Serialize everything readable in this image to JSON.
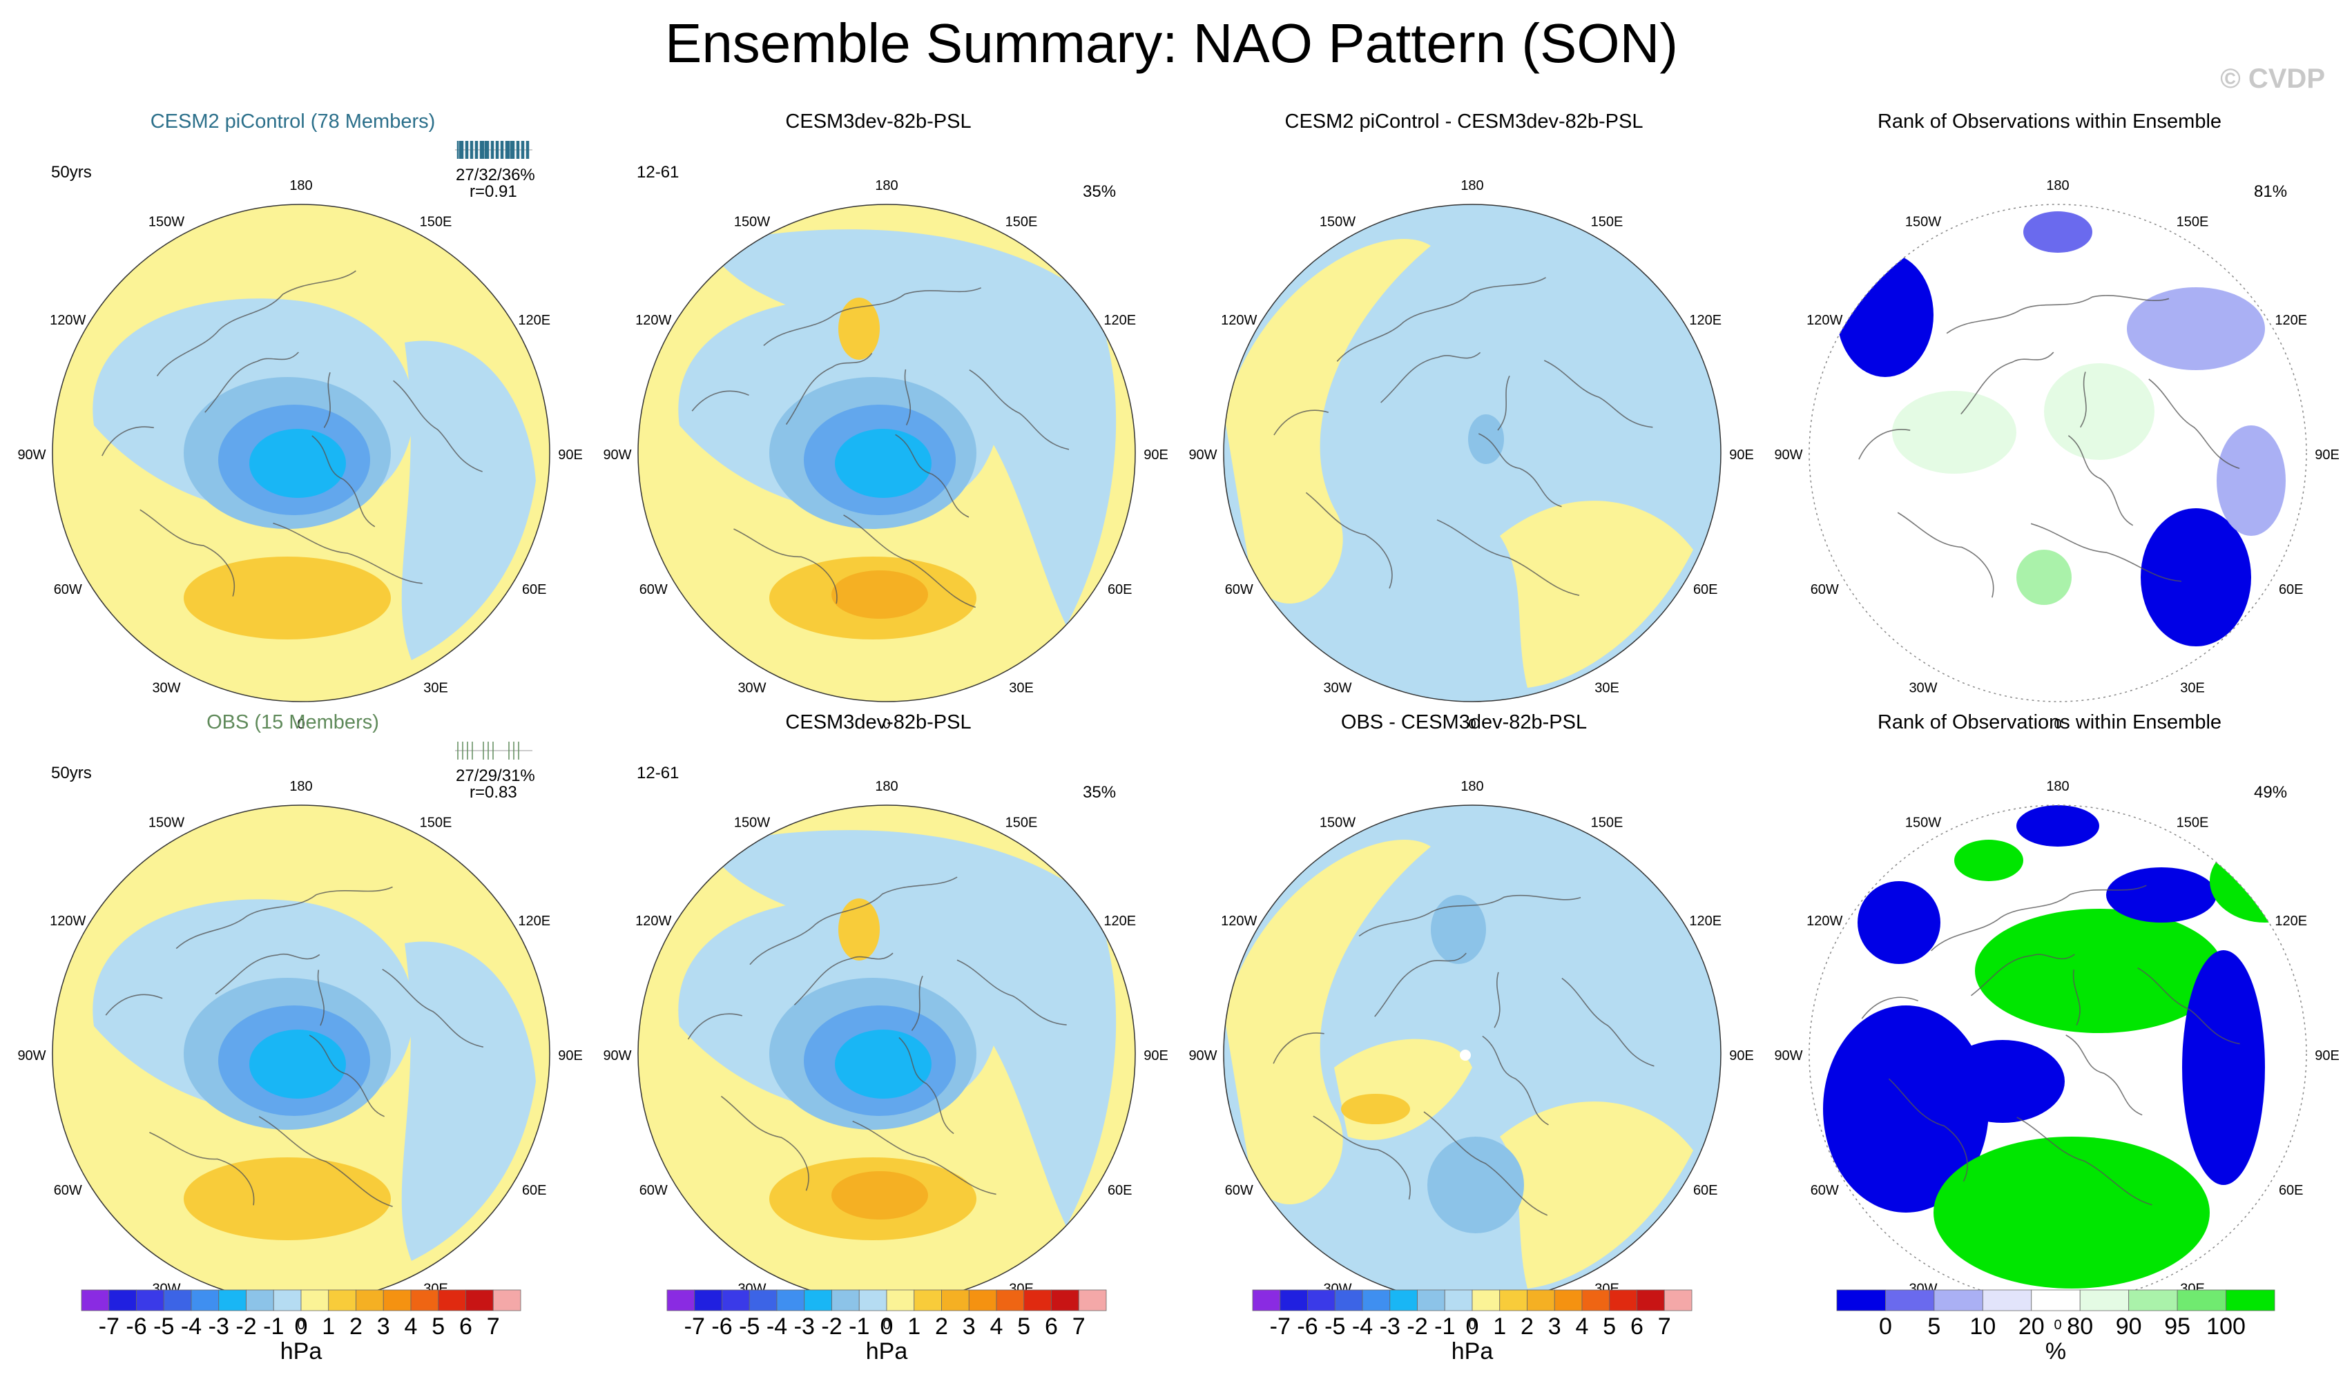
{
  "header": {
    "title": "Ensemble Summary: NAO Pattern (SON)",
    "watermark": "© CVDP"
  },
  "rows": [
    {
      "panels": [
        {
          "title": "CESM2 piControl (78 Members)",
          "title_color": "#2b6f8a",
          "period": "50yrs",
          "stats": "27/32/36%",
          "corr": "r=0.91",
          "bar_color": "#2b6f8a",
          "kind": "pattern",
          "variant": 0
        },
        {
          "title": "CESM3dev-82b-PSL",
          "title_color": "#000000",
          "period": "12-61",
          "percent": "35%",
          "kind": "pattern",
          "variant": 1
        },
        {
          "title": "CESM2 piControl - CESM3dev-82b-PSL",
          "title_color": "#000000",
          "kind": "diff",
          "variant": 2
        },
        {
          "title": "Rank of Observations within Ensemble",
          "title_color": "#000000",
          "percent": "81%",
          "kind": "rank",
          "variant": 3
        }
      ]
    },
    {
      "panels": [
        {
          "title": "OBS (15 Members)",
          "title_color": "#5f8a5a",
          "period": "50yrs",
          "stats": "27/29/31%",
          "corr": "r=0.83",
          "bar_color": "#5f8a5a",
          "kind": "pattern",
          "variant": 4
        },
        {
          "title": "CESM3dev-82b-PSL",
          "title_color": "#000000",
          "period": "12-61",
          "percent": "35%",
          "kind": "pattern",
          "variant": 5
        },
        {
          "title": "OBS - CESM3dev-82b-PSL",
          "title_color": "#000000",
          "kind": "diff",
          "variant": 6
        },
        {
          "title": "Rank of Observations within Ensemble",
          "title_color": "#000000",
          "percent": "49%",
          "kind": "rank",
          "variant": 7
        }
      ]
    }
  ],
  "longitude_labels": [
    "180",
    "150E",
    "120E",
    "90E",
    "60E",
    "30E",
    "0",
    "30W",
    "60W",
    "90W",
    "120W",
    "150W"
  ],
  "colorbar_hpa": {
    "labels": [
      "-7",
      "-6",
      "-5",
      "-4",
      "-3",
      "-2",
      "-1",
      "0",
      "1",
      "2",
      "3",
      "4",
      "5",
      "6",
      "7"
    ],
    "unit": "hPa",
    "colors": [
      "#8a2be2",
      "#2020e0",
      "#3a3ae8",
      "#3c64e6",
      "#3f8ff0",
      "#19b6f5",
      "#8cc3e8",
      "#b5dcf2",
      "#fbf396",
      "#f8cc3a",
      "#f5b023",
      "#f59211",
      "#ef6513",
      "#e02a10",
      "#c81414",
      "#f4a8a8"
    ]
  },
  "colorbar_rank": {
    "labels": [
      "0",
      "5",
      "10",
      "20",
      "80",
      "90",
      "95",
      "100"
    ],
    "unit": "%",
    "colors": [
      "#0000e6",
      "#6a6aee",
      "#aab0f4",
      "#e2e4fb",
      "#ffffff",
      "#e4fbe4",
      "#aaf2aa",
      "#70ea70",
      "#00e600"
    ]
  }
}
